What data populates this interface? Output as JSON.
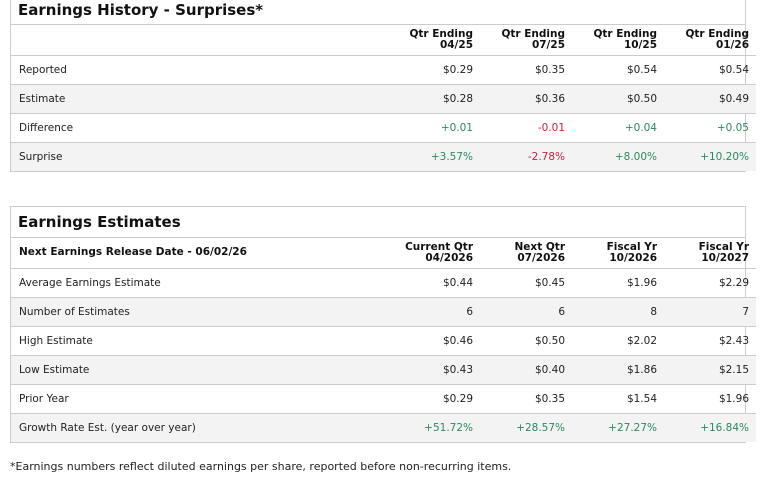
{
  "history": {
    "title": "Earnings History - Surprises*",
    "columns": [
      "Qtr Ending\n04/25",
      "Qtr Ending\n07/25",
      "Qtr Ending\n10/25",
      "Qtr Ending\n01/26"
    ],
    "rows": [
      {
        "label": "Reported",
        "values": [
          "$0.29",
          "$0.35",
          "$0.54",
          "$0.54"
        ]
      },
      {
        "label": "Estimate",
        "values": [
          "$0.28",
          "$0.36",
          "$0.50",
          "$0.49"
        ]
      },
      {
        "label": "Difference",
        "values": [
          "+0.01",
          "-0.01",
          "+0.04",
          "+0.05"
        ]
      },
      {
        "label": "Surprise",
        "values": [
          "+3.57%",
          "-2.78%",
          "+8.00%",
          "+10.20%"
        ]
      }
    ]
  },
  "estimates": {
    "title": "Earnings Estimates",
    "header_label": "Next Earnings Release Date - 06/02/26",
    "columns": [
      "Current Qtr\n04/2026",
      "Next Qtr\n07/2026",
      "Fiscal Yr\n10/2026",
      "Fiscal Yr\n10/2027"
    ],
    "rows": [
      {
        "label": "Average Earnings Estimate",
        "values": [
          "$0.44",
          "$0.45",
          "$1.96",
          "$2.29"
        ]
      },
      {
        "label": "Number of Estimates",
        "values": [
          "6",
          "6",
          "8",
          "7"
        ]
      },
      {
        "label": "High Estimate",
        "values": [
          "$0.46",
          "$0.50",
          "$2.02",
          "$2.43"
        ]
      },
      {
        "label": "Low Estimate",
        "values": [
          "$0.43",
          "$0.40",
          "$1.86",
          "$2.15"
        ]
      },
      {
        "label": "Prior Year",
        "values": [
          "$0.29",
          "$0.35",
          "$1.54",
          "$1.96"
        ]
      },
      {
        "label": "Growth Rate Est. (year over year)",
        "values": [
          "+51.72%",
          "+28.57%",
          "+27.27%",
          "+16.84%"
        ]
      }
    ]
  },
  "footnote": "*Earnings numbers reflect diluted earnings per share, reported before non-recurring items.",
  "colors": {
    "positive": "#2e8a5e",
    "negative": "#d0213a"
  }
}
